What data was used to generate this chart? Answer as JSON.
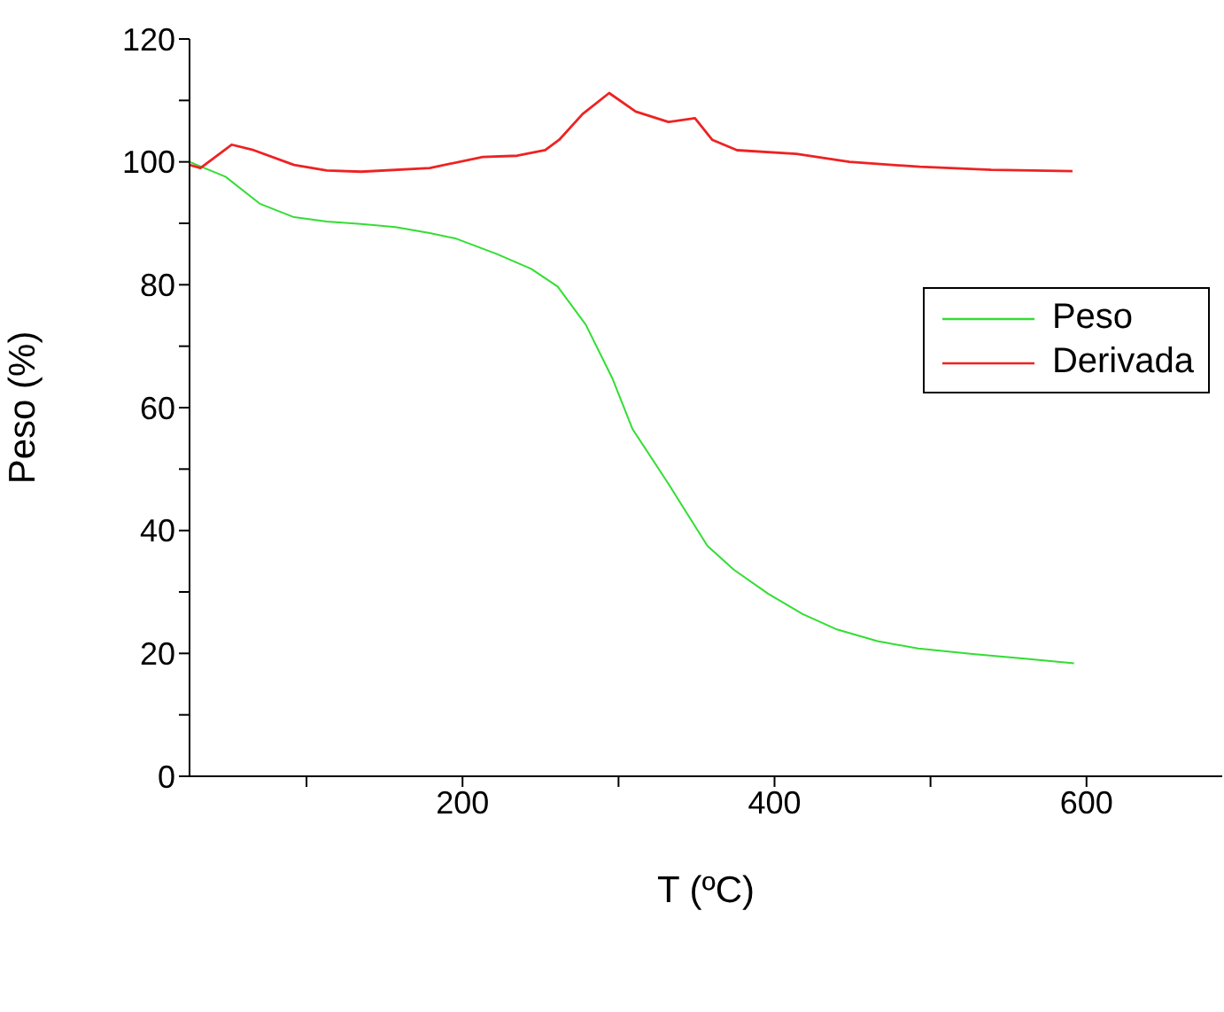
{
  "chart_data": {
    "type": "line",
    "xlabel": "T (ºC)",
    "ylabel": "Peso (%)",
    "xlim": [
      25,
      687
    ],
    "xticks": [
      {
        "value": 100,
        "label": null
      },
      200,
      {
        "value": 300,
        "label": null
      },
      400,
      {
        "value": 500,
        "label": null
      },
      600
    ],
    "ylim": [
      0,
      120
    ],
    "yticks": [
      0,
      {
        "value": 10,
        "label": null
      },
      20,
      {
        "value": 30,
        "label": null
      },
      40,
      {
        "value": 50,
        "label": null
      },
      60,
      {
        "value": 70,
        "label": null
      },
      80,
      {
        "value": 90,
        "label": null
      },
      100,
      {
        "value": 110,
        "label": null
      },
      120
    ],
    "grid": false,
    "legend": "top right",
    "marker": "none",
    "line_style": "solid",
    "series": [
      {
        "name": "Peso",
        "color": "#33dd33",
        "x": [
          25,
          48,
          70,
          92,
          113,
          135,
          157,
          179,
          196,
          222,
          244,
          261,
          279,
          296,
          309,
          331,
          357,
          374,
          396,
          418,
          440,
          466,
          492,
          527,
          562,
          592
        ],
        "values": [
          100,
          97.6,
          93.2,
          91,
          90.3,
          89.9,
          89.4,
          88.4,
          87.5,
          85,
          82.6,
          79.7,
          73.5,
          64.8,
          56.5,
          48,
          37.5,
          33.6,
          29.7,
          26.4,
          23.9,
          22,
          20.8,
          19.9,
          19.1,
          18.4
        ]
      },
      {
        "name": "Derivada",
        "color": "#ee2222",
        "x": [
          25,
          32,
          40,
          52,
          65,
          92,
          113,
          135,
          179,
          213,
          235,
          253,
          262,
          277,
          294,
          311,
          332,
          349,
          360,
          376,
          414,
          448,
          493,
          539,
          591
        ],
        "values": [
          99.5,
          99,
          100.5,
          102.8,
          102,
          99.5,
          98.6,
          98.4,
          99,
          100.8,
          101,
          101.9,
          103.6,
          107.8,
          111.2,
          108.2,
          106.5,
          107.1,
          103.6,
          101.9,
          101.3,
          100,
          99.2,
          98.7,
          98.5
        ]
      }
    ]
  }
}
